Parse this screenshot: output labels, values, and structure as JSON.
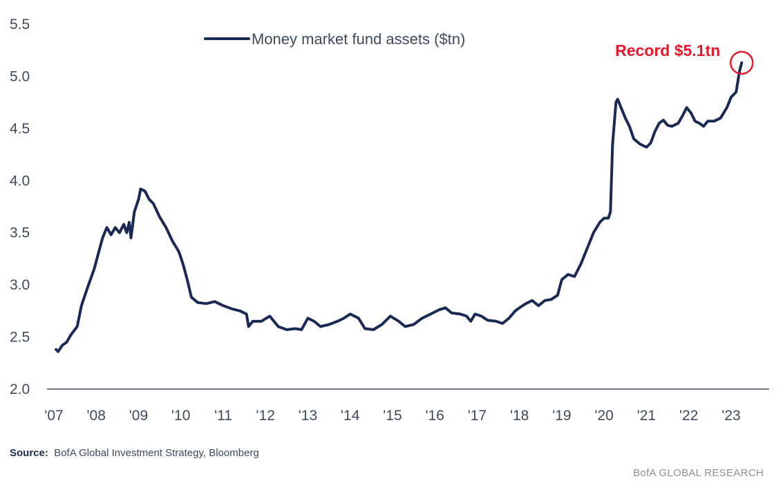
{
  "chart_data": {
    "type": "line",
    "ylim": [
      2.0,
      5.5
    ],
    "yticks": [
      "2.0",
      "2.5",
      "3.0",
      "3.5",
      "4.0",
      "4.5",
      "5.0",
      "5.5"
    ],
    "xlim": [
      2007.0,
      2023.9
    ],
    "xticks": [
      "'07",
      "'08",
      "'09",
      "'10",
      "'11",
      "'12",
      "'13",
      "'14",
      "'15",
      "'16",
      "'17",
      "'18",
      "'19",
      "'20",
      "'21",
      "'22",
      "'23"
    ],
    "grid": false,
    "legend_position": "top-center",
    "colors": {
      "series": "#1b2a55",
      "annotation": "#e8192c"
    },
    "series": [
      {
        "name": "Money market fund assets ($tn)",
        "points": [
          [
            2007.05,
            2.38
          ],
          [
            2007.1,
            2.36
          ],
          [
            2007.2,
            2.42
          ],
          [
            2007.3,
            2.45
          ],
          [
            2007.4,
            2.52
          ],
          [
            2007.55,
            2.6
          ],
          [
            2007.65,
            2.8
          ],
          [
            2007.8,
            2.98
          ],
          [
            2007.95,
            3.15
          ],
          [
            2008.05,
            3.3
          ],
          [
            2008.15,
            3.45
          ],
          [
            2008.25,
            3.55
          ],
          [
            2008.35,
            3.48
          ],
          [
            2008.45,
            3.55
          ],
          [
            2008.55,
            3.5
          ],
          [
            2008.65,
            3.58
          ],
          [
            2008.72,
            3.5
          ],
          [
            2008.78,
            3.6
          ],
          [
            2008.82,
            3.45
          ],
          [
            2008.9,
            3.7
          ],
          [
            2009.0,
            3.82
          ],
          [
            2009.05,
            3.92
          ],
          [
            2009.15,
            3.9
          ],
          [
            2009.25,
            3.82
          ],
          [
            2009.35,
            3.78
          ],
          [
            2009.5,
            3.65
          ],
          [
            2009.65,
            3.55
          ],
          [
            2009.8,
            3.42
          ],
          [
            2009.95,
            3.32
          ],
          [
            2010.05,
            3.2
          ],
          [
            2010.15,
            3.05
          ],
          [
            2010.25,
            2.88
          ],
          [
            2010.4,
            2.83
          ],
          [
            2010.6,
            2.82
          ],
          [
            2010.8,
            2.84
          ],
          [
            2011.0,
            2.8
          ],
          [
            2011.2,
            2.77
          ],
          [
            2011.4,
            2.75
          ],
          [
            2011.55,
            2.72
          ],
          [
            2011.6,
            2.6
          ],
          [
            2011.7,
            2.65
          ],
          [
            2011.9,
            2.65
          ],
          [
            2012.1,
            2.7
          ],
          [
            2012.3,
            2.6
          ],
          [
            2012.5,
            2.57
          ],
          [
            2012.7,
            2.58
          ],
          [
            2012.85,
            2.57
          ],
          [
            2013.0,
            2.68
          ],
          [
            2013.15,
            2.65
          ],
          [
            2013.3,
            2.6
          ],
          [
            2013.5,
            2.62
          ],
          [
            2013.7,
            2.65
          ],
          [
            2013.85,
            2.68
          ],
          [
            2014.0,
            2.72
          ],
          [
            2014.2,
            2.68
          ],
          [
            2014.35,
            2.58
          ],
          [
            2014.55,
            2.57
          ],
          [
            2014.75,
            2.62
          ],
          [
            2014.95,
            2.7
          ],
          [
            2015.15,
            2.65
          ],
          [
            2015.3,
            2.6
          ],
          [
            2015.5,
            2.62
          ],
          [
            2015.7,
            2.68
          ],
          [
            2015.9,
            2.72
          ],
          [
            2016.1,
            2.76
          ],
          [
            2016.25,
            2.78
          ],
          [
            2016.4,
            2.73
          ],
          [
            2016.6,
            2.72
          ],
          [
            2016.75,
            2.7
          ],
          [
            2016.85,
            2.65
          ],
          [
            2016.95,
            2.72
          ],
          [
            2017.1,
            2.7
          ],
          [
            2017.25,
            2.66
          ],
          [
            2017.45,
            2.65
          ],
          [
            2017.6,
            2.63
          ],
          [
            2017.75,
            2.68
          ],
          [
            2017.9,
            2.75
          ],
          [
            2018.0,
            2.78
          ],
          [
            2018.15,
            2.82
          ],
          [
            2018.3,
            2.85
          ],
          [
            2018.45,
            2.8
          ],
          [
            2018.6,
            2.85
          ],
          [
            2018.75,
            2.86
          ],
          [
            2018.9,
            2.9
          ],
          [
            2019.0,
            3.05
          ],
          [
            2019.15,
            3.1
          ],
          [
            2019.3,
            3.08
          ],
          [
            2019.45,
            3.2
          ],
          [
            2019.6,
            3.35
          ],
          [
            2019.75,
            3.5
          ],
          [
            2019.9,
            3.6
          ],
          [
            2020.0,
            3.64
          ],
          [
            2020.1,
            3.64
          ],
          [
            2020.15,
            3.7
          ],
          [
            2020.2,
            4.35
          ],
          [
            2020.28,
            4.75
          ],
          [
            2020.32,
            4.78
          ],
          [
            2020.4,
            4.7
          ],
          [
            2020.5,
            4.6
          ],
          [
            2020.6,
            4.52
          ],
          [
            2020.7,
            4.4
          ],
          [
            2020.85,
            4.35
          ],
          [
            2021.0,
            4.32
          ],
          [
            2021.1,
            4.36
          ],
          [
            2021.2,
            4.47
          ],
          [
            2021.3,
            4.55
          ],
          [
            2021.4,
            4.58
          ],
          [
            2021.5,
            4.53
          ],
          [
            2021.6,
            4.52
          ],
          [
            2021.75,
            4.55
          ],
          [
            2021.85,
            4.62
          ],
          [
            2021.95,
            4.7
          ],
          [
            2022.05,
            4.65
          ],
          [
            2022.15,
            4.57
          ],
          [
            2022.25,
            4.55
          ],
          [
            2022.35,
            4.52
          ],
          [
            2022.45,
            4.57
          ],
          [
            2022.6,
            4.57
          ],
          [
            2022.75,
            4.6
          ],
          [
            2022.9,
            4.7
          ],
          [
            2023.0,
            4.8
          ],
          [
            2023.12,
            4.85
          ],
          [
            2023.2,
            5.05
          ],
          [
            2023.25,
            5.13
          ]
        ]
      }
    ],
    "annotations": [
      {
        "label": "Record $5.1tn",
        "x": 2023.25,
        "y": 5.13
      }
    ]
  },
  "footer": {
    "source_label": "Source:",
    "source_text": "BofA Global Investment Strategy, Bloomberg",
    "brand": "BofA GLOBAL RESEARCH"
  }
}
